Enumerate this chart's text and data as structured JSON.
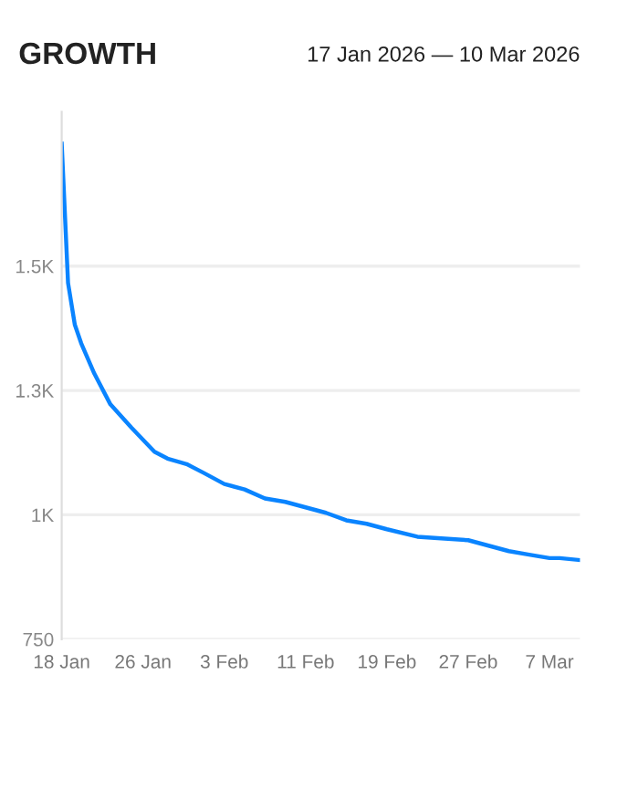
{
  "chart_data": {
    "type": "line",
    "title": "GROWTH",
    "subtitle": "17 Jan 2026 — 10 Mar 2026",
    "x": [
      "2026-01-18T00:00",
      "2026-01-18T15:00",
      "2026-01-19T07:00",
      "2026-01-19T22:00",
      "2026-01-21T05:00",
      "2026-01-22T19:00",
      "2026-01-24T21:00",
      "2026-01-27T03:00",
      "2026-01-28T10:00",
      "2026-01-30T07:00",
      "2026-02-01",
      "2026-02-03",
      "2026-02-05",
      "2026-02-07",
      "2026-02-09",
      "2026-02-11",
      "2026-02-13",
      "2026-02-15",
      "2026-02-17",
      "2026-02-19",
      "2026-02-22",
      "2026-02-24",
      "2026-02-27",
      "2026-03-01",
      "2026-03-03",
      "2026-03-05",
      "2026-03-07",
      "2026-03-08",
      "2026-03-10"
    ],
    "series": [
      {
        "color": "#0a84ff",
        "values": [
          1746,
          1466,
          1382,
          1345,
          1284,
          1222,
          1175,
          1127,
          1113,
          1102,
          1084,
          1062,
          1051,
          1033,
          1026,
          1015,
          1004,
          989,
          982,
          971,
          956,
          953,
          949,
          938,
          927,
          920,
          913,
          913,
          909
        ]
      }
    ],
    "xlim": [
      "2026-01-18",
      "2026-03-10"
    ],
    "xticks": [
      {
        "value": "2026-01-18",
        "label": "18 Jan"
      },
      {
        "value": "2026-01-26",
        "label": "26 Jan"
      },
      {
        "value": "2026-02-03",
        "label": "3 Feb"
      },
      {
        "value": "2026-02-11",
        "label": "11 Feb"
      },
      {
        "value": "2026-02-19",
        "label": "19 Feb"
      },
      {
        "value": "2026-02-27",
        "label": "27 Feb"
      },
      {
        "value": "2026-03-07",
        "label": "7 Mar"
      }
    ],
    "ylim": [
      750,
      1810
    ],
    "yticks": [
      750,
      {
        "value": 1000,
        "label": "1K"
      },
      {
        "value": 1250,
        "label": "1.3K"
      },
      {
        "value": 1500,
        "label": "1.5K"
      }
    ],
    "grid": "y",
    "marker": "none",
    "line_style": "solid"
  }
}
